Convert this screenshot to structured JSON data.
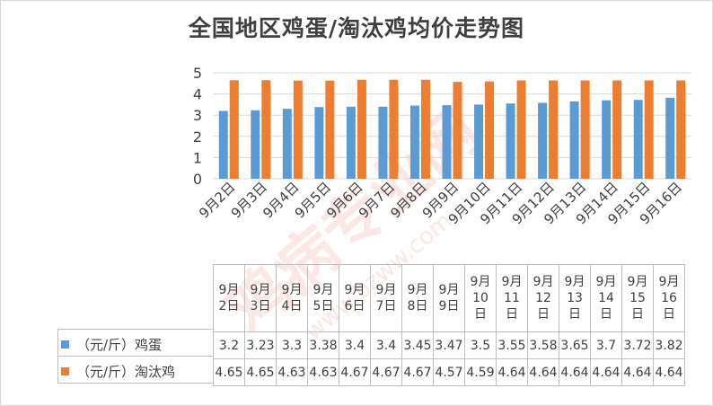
{
  "chart_data": {
    "type": "bar",
    "title": "全国地区鸡蛋/淘汰鸡均价走势图",
    "categories": [
      "9月2日",
      "9月3日",
      "9月4日",
      "9月5日",
      "9月6日",
      "9月7日",
      "9月8日",
      "9月9日",
      "9月10日",
      "9月11日",
      "9月12日",
      "9月13日",
      "9月14日",
      "9月15日",
      "9月16日"
    ],
    "table_headers": [
      [
        "9月",
        "2日"
      ],
      [
        "9月",
        "3日"
      ],
      [
        "9月",
        "4日"
      ],
      [
        "9月",
        "5日"
      ],
      [
        "9月",
        "6日"
      ],
      [
        "9月",
        "7日"
      ],
      [
        "9月",
        "8日"
      ],
      [
        "9月",
        "9日"
      ],
      [
        "9月",
        "10",
        "日"
      ],
      [
        "9月",
        "11",
        "日"
      ],
      [
        "9月",
        "12",
        "日"
      ],
      [
        "9月",
        "13",
        "日"
      ],
      [
        "9月",
        "14",
        "日"
      ],
      [
        "9月",
        "15",
        "日"
      ],
      [
        "9月",
        "16",
        "日"
      ]
    ],
    "series": [
      {
        "name": "（元/斤）鸡蛋",
        "color": "#5b9bd5",
        "values": [
          3.2,
          3.23,
          3.3,
          3.38,
          3.4,
          3.4,
          3.45,
          3.47,
          3.5,
          3.55,
          3.58,
          3.65,
          3.7,
          3.72,
          3.82
        ]
      },
      {
        "name": "（元/斤）淘汰鸡",
        "color": "#ed7d31",
        "values": [
          4.65,
          4.65,
          4.63,
          4.63,
          4.67,
          4.67,
          4.67,
          4.57,
          4.59,
          4.64,
          4.64,
          4.64,
          4.64,
          4.64,
          4.64
        ]
      }
    ],
    "yticks": [
      "0",
      "1",
      "2",
      "3",
      "4",
      "5"
    ],
    "ylim": [
      0,
      5
    ],
    "grid": true,
    "legend": "data-table"
  },
  "watermark_text": "鸡病专业网 www.bzww.com"
}
